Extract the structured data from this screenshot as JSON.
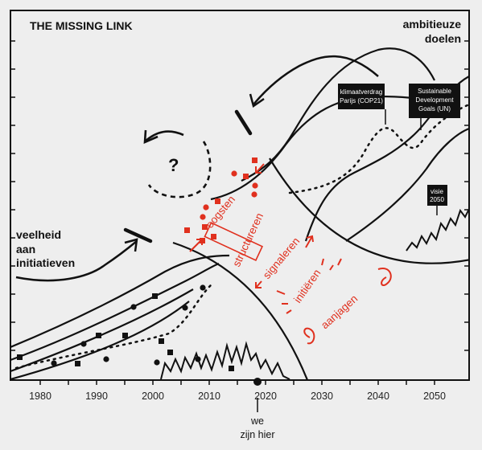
{
  "title": "THE MISSING LINK",
  "labels": {
    "ambition_line1": "ambitieuze",
    "ambition_line2": "doelen",
    "many_line1": "veelheid",
    "many_line2": "aan",
    "many_line3": "initiatieven",
    "question": "?",
    "here_line1": "we",
    "here_line2": "zijn hier"
  },
  "red_labels": {
    "harvest": "oogsten",
    "structure": "structureren",
    "signal": "signaleren",
    "initiate": "initiëren",
    "drive": "aanjagen"
  },
  "boxes": {
    "paris_line1": "klimaatverdrag",
    "paris_line2": "Parijs (COP21)",
    "sdg_line1": "Sustainable",
    "sdg_line2": "Development",
    "sdg_line3": "Goals (UN)",
    "vision_line1": "visie",
    "vision_line2": "2050"
  },
  "axis": {
    "years": [
      "1980",
      "1990",
      "2000",
      "2010",
      "2020",
      "2030",
      "2040",
      "2050"
    ]
  },
  "colors": {
    "background": "#eeeeee",
    "ink": "#111111",
    "accent": "#e0301e"
  }
}
